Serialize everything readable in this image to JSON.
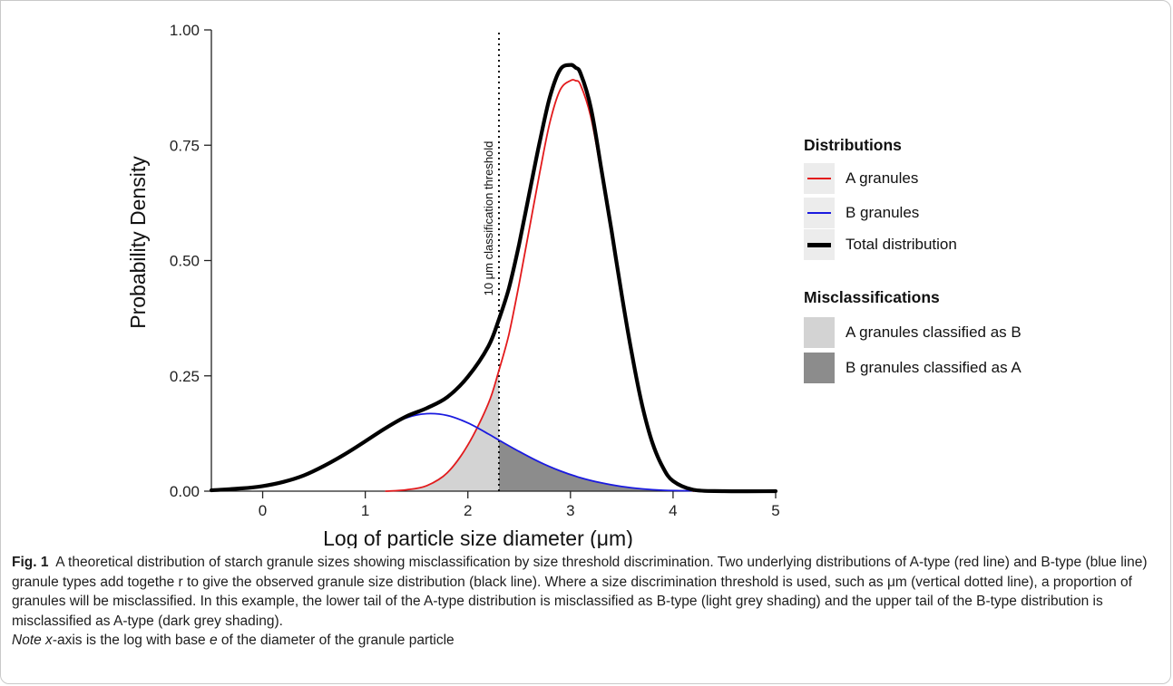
{
  "chart_data": {
    "type": "line",
    "xlabel": "Log of particle size diameter (μm)",
    "ylabel": "Probability Density",
    "xlim": [
      -0.5,
      5
    ],
    "ylim": [
      0,
      1
    ],
    "x_ticks": [
      "0",
      "1",
      "2",
      "3",
      "4",
      "5"
    ],
    "y_ticks": [
      "0.00",
      "0.25",
      "0.50",
      "0.75",
      "1.00"
    ],
    "threshold": {
      "x": 2.303,
      "label": "10 μm classification threshold",
      "style": "dotted"
    },
    "series": [
      {
        "name": "A granules",
        "color": "#e31a1c",
        "x": [
          1.2,
          1.4,
          1.6,
          1.8,
          2.0,
          2.2,
          2.3,
          2.4,
          2.5,
          2.6,
          2.7,
          2.8,
          2.9,
          3.0,
          3.05,
          3.1,
          3.2,
          3.3,
          3.4,
          3.5,
          3.6,
          3.7,
          3.8,
          3.9,
          4.0,
          4.2
        ],
        "values": [
          0.0,
          0.003,
          0.012,
          0.04,
          0.1,
          0.19,
          0.26,
          0.34,
          0.45,
          0.57,
          0.69,
          0.8,
          0.87,
          0.89,
          0.89,
          0.88,
          0.81,
          0.69,
          0.56,
          0.42,
          0.29,
          0.18,
          0.1,
          0.05,
          0.02,
          0.0
        ]
      },
      {
        "name": "B granules",
        "color": "#1a1adf",
        "x": [
          -0.5,
          -0.2,
          0.0,
          0.2,
          0.4,
          0.6,
          0.8,
          1.0,
          1.2,
          1.4,
          1.6,
          1.8,
          2.0,
          2.2,
          2.3,
          2.5,
          2.7,
          2.9,
          3.1,
          3.3,
          3.5,
          3.7,
          3.9,
          4.1,
          4.5
        ],
        "values": [
          0.002,
          0.006,
          0.011,
          0.02,
          0.034,
          0.055,
          0.08,
          0.108,
          0.137,
          0.159,
          0.168,
          0.164,
          0.148,
          0.124,
          0.111,
          0.086,
          0.063,
          0.044,
          0.029,
          0.018,
          0.01,
          0.005,
          0.002,
          0.001,
          0.0
        ]
      },
      {
        "name": "Total distribution",
        "color": "#000000",
        "x": [
          -0.5,
          -0.2,
          0.0,
          0.2,
          0.4,
          0.6,
          0.8,
          1.0,
          1.2,
          1.4,
          1.6,
          1.8,
          2.0,
          2.2,
          2.3,
          2.4,
          2.5,
          2.6,
          2.7,
          2.8,
          2.9,
          3.0,
          3.05,
          3.1,
          3.2,
          3.3,
          3.4,
          3.5,
          3.6,
          3.7,
          3.8,
          3.9,
          4.0,
          4.2,
          4.5,
          5.0
        ],
        "values": [
          0.002,
          0.006,
          0.011,
          0.02,
          0.034,
          0.055,
          0.08,
          0.108,
          0.137,
          0.162,
          0.18,
          0.204,
          0.248,
          0.314,
          0.371,
          0.44,
          0.536,
          0.647,
          0.757,
          0.855,
          0.914,
          0.924,
          0.918,
          0.905,
          0.83,
          0.7,
          0.565,
          0.425,
          0.296,
          0.185,
          0.104,
          0.052,
          0.022,
          0.003,
          0.0,
          0.0
        ]
      }
    ],
    "shaded": [
      {
        "name": "A granules classified as B",
        "color": "#d3d3d3",
        "from_series": "A granules",
        "range": [
          -0.5,
          2.303
        ]
      },
      {
        "name": "B granules classified as A",
        "color": "#8c8c8c",
        "from_series": "B granules",
        "range": [
          2.303,
          5
        ]
      }
    ],
    "legend": {
      "position": "right",
      "groups": [
        {
          "title": "Distributions",
          "items": [
            "A granules",
            "B granules",
            "Total distribution"
          ]
        },
        {
          "title": "Misclassifications",
          "items": [
            "A granules classified as B",
            "B granules classified as A"
          ]
        }
      ]
    }
  },
  "caption": {
    "label": "Fig. 1",
    "text": "A theoretical distribution of starch granule sizes showing misclassification by size threshold discrimination. Two underlying distributions of A-type (red line) and B-type (blue line) granule types add togethe r to give the observed granule size distribution (black line). Where a size discrimination threshold is used, such as  μm (vertical dotted line), a proportion of granules will be misclassified. In this example, the lower tail of the A-type distribution is misclassified as B-type (light grey shading) and the upper tail of the B-type distribution is misclassified as A-type (dark grey shading).",
    "note_italic": "Note x",
    "note_rest": "-axis is the log with base ",
    "note_e": "e",
    "note_end": " of the diameter of the granule particle"
  },
  "legend": {
    "distributions_title": "Distributions",
    "misclass_title": "Misclassifications",
    "a_label": "A granules",
    "b_label": "B granules",
    "total_label": "Total distribution",
    "a_as_b_label": "A granules classified as B",
    "b_as_a_label": "B granules classified as A"
  }
}
